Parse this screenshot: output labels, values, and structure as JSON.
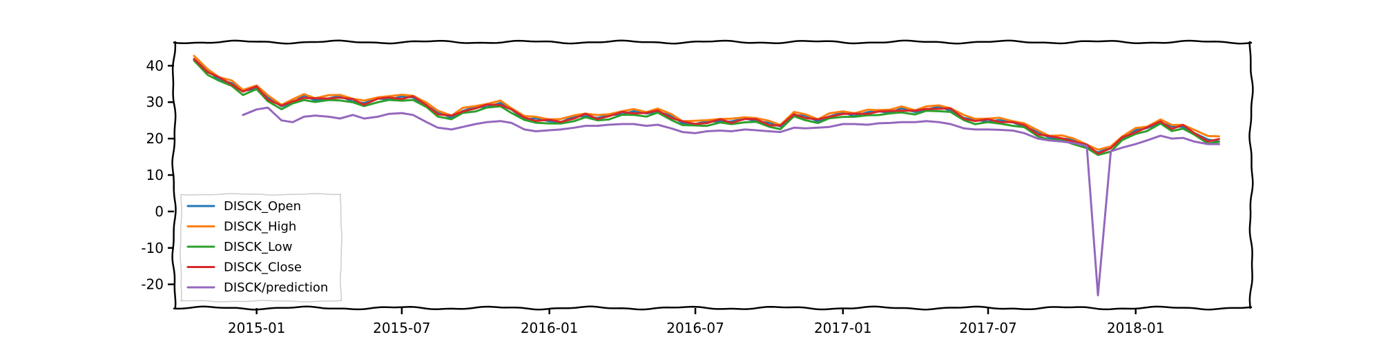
{
  "chart_data": {
    "type": "line",
    "title": "",
    "xlabel": "",
    "ylabel": "",
    "xlim": [
      "2014-09-20",
      "2018-05-25"
    ],
    "ylim": [
      -26.5,
      46.5
    ],
    "grid": false,
    "legend_position": "lower-left",
    "x_ticks": [
      "2015-01",
      "2015-07",
      "2016-01",
      "2016-07",
      "2017-01",
      "2017-07",
      "2018-01"
    ],
    "y_ticks": [
      40,
      30,
      20,
      10,
      0,
      -10,
      -20
    ],
    "y_tick_labels": [
      "40",
      "30",
      "20",
      "10",
      "0",
      "-10",
      "-20"
    ],
    "x": [
      "2014-10-15",
      "2014-11-01",
      "2014-11-15",
      "2014-12-01",
      "2014-12-15",
      "2015-01-01",
      "2015-01-15",
      "2015-02-01",
      "2015-02-15",
      "2015-03-01",
      "2015-03-15",
      "2015-04-01",
      "2015-04-15",
      "2015-05-01",
      "2015-05-15",
      "2015-06-01",
      "2015-06-15",
      "2015-07-01",
      "2015-07-15",
      "2015-08-01",
      "2015-08-15",
      "2015-09-01",
      "2015-09-15",
      "2015-10-01",
      "2015-10-15",
      "2015-11-01",
      "2015-11-15",
      "2015-12-01",
      "2015-12-15",
      "2016-01-01",
      "2016-01-15",
      "2016-02-01",
      "2016-02-15",
      "2016-03-01",
      "2016-03-15",
      "2016-04-01",
      "2016-04-15",
      "2016-05-01",
      "2016-05-15",
      "2016-06-01",
      "2016-06-15",
      "2016-07-01",
      "2016-07-15",
      "2016-08-01",
      "2016-08-15",
      "2016-09-01",
      "2016-09-15",
      "2016-10-01",
      "2016-10-15",
      "2016-11-01",
      "2016-11-15",
      "2016-12-01",
      "2016-12-15",
      "2017-01-01",
      "2017-01-15",
      "2017-02-01",
      "2017-02-15",
      "2017-03-01",
      "2017-03-15",
      "2017-04-01",
      "2017-04-15",
      "2017-05-01",
      "2017-05-15",
      "2017-06-01",
      "2017-06-15",
      "2017-07-01",
      "2017-07-15",
      "2017-08-01",
      "2017-08-15",
      "2017-09-01",
      "2017-09-15",
      "2017-10-01",
      "2017-10-15",
      "2017-11-01",
      "2017-11-15",
      "2017-12-01",
      "2017-12-15",
      "2018-01-01",
      "2018-01-15",
      "2018-02-01",
      "2018-02-15",
      "2018-03-01",
      "2018-03-15",
      "2018-04-01",
      "2018-04-15"
    ],
    "series": [
      {
        "name": "DISCK_Open",
        "color": "#1f77b4",
        "values": [
          41.8,
          38.5,
          36.5,
          35.0,
          33.0,
          34.0,
          31.0,
          29.0,
          30.0,
          31.5,
          30.8,
          31.0,
          31.5,
          30.5,
          29.5,
          31.0,
          31.0,
          31.2,
          31.5,
          29.0,
          27.0,
          26.0,
          27.5,
          28.5,
          29.0,
          29.5,
          28.0,
          25.5,
          25.2,
          25.0,
          24.5,
          25.8,
          26.5,
          25.5,
          26.3,
          27.0,
          27.2,
          27.0,
          27.5,
          26.0,
          24.5,
          24.0,
          24.5,
          25.0,
          24.5,
          25.5,
          25.0,
          24.0,
          23.5,
          26.5,
          26.0,
          25.0,
          26.0,
          27.0,
          26.5,
          27.0,
          27.5,
          27.3,
          28.0,
          27.5,
          28.0,
          28.5,
          28.0,
          25.5,
          25.0,
          25.0,
          24.8,
          24.5,
          23.5,
          21.5,
          20.5,
          20.0,
          19.5,
          18.0,
          16.0,
          17.5,
          20.0,
          22.0,
          23.0,
          24.5,
          23.0,
          23.5,
          21.5,
          19.5,
          19.5
        ]
      },
      {
        "name": "DISCK_High",
        "color": "#ff7f0e",
        "values": [
          42.4,
          39.1,
          37.1,
          35.6,
          33.6,
          34.6,
          31.6,
          29.6,
          30.6,
          32.1,
          31.4,
          31.6,
          32.1,
          31.1,
          30.1,
          31.6,
          31.6,
          31.8,
          32.1,
          29.6,
          27.6,
          26.6,
          28.1,
          29.1,
          29.6,
          30.1,
          28.6,
          26.1,
          25.8,
          25.6,
          25.1,
          26.4,
          27.1,
          26.1,
          26.9,
          27.6,
          27.8,
          27.6,
          28.1,
          26.6,
          25.1,
          24.6,
          25.1,
          25.6,
          25.1,
          26.1,
          25.6,
          24.6,
          24.1,
          27.1,
          26.6,
          25.6,
          26.6,
          27.6,
          27.1,
          27.6,
          28.1,
          27.9,
          28.6,
          28.1,
          28.6,
          29.1,
          28.6,
          26.1,
          25.6,
          25.6,
          25.4,
          25.1,
          24.1,
          22.1,
          21.1,
          20.6,
          20.1,
          18.6,
          16.6,
          18.1,
          20.6,
          22.6,
          23.6,
          25.1,
          23.6,
          24.1,
          22.1,
          20.8,
          20.8
        ]
      },
      {
        "name": "DISCK_Low",
        "color": "#2ca02c",
        "values": [
          41.1,
          37.8,
          35.8,
          34.3,
          32.3,
          33.3,
          30.3,
          28.3,
          29.3,
          30.8,
          30.1,
          30.3,
          30.8,
          29.8,
          28.8,
          30.3,
          30.3,
          30.5,
          30.8,
          28.3,
          26.3,
          25.3,
          26.8,
          27.8,
          28.3,
          28.8,
          27.3,
          24.8,
          24.5,
          24.3,
          23.8,
          25.1,
          25.8,
          24.8,
          25.6,
          26.3,
          26.5,
          26.3,
          26.8,
          25.3,
          23.8,
          23.3,
          23.8,
          24.3,
          23.8,
          24.8,
          24.3,
          23.3,
          22.8,
          25.8,
          25.3,
          24.3,
          25.3,
          26.3,
          25.8,
          26.3,
          26.8,
          26.6,
          27.3,
          26.8,
          27.3,
          27.8,
          27.3,
          24.8,
          24.3,
          24.3,
          24.1,
          23.8,
          22.8,
          20.8,
          19.8,
          19.3,
          18.8,
          17.3,
          15.3,
          16.8,
          19.3,
          21.3,
          22.3,
          23.8,
          22.3,
          22.8,
          20.8,
          19.0,
          19.0
        ]
      },
      {
        "name": "DISCK_Close",
        "color": "#d62728",
        "values": [
          41.8,
          38.5,
          36.5,
          35.0,
          33.0,
          34.0,
          31.0,
          29.0,
          30.0,
          31.5,
          30.8,
          31.0,
          31.5,
          30.5,
          29.5,
          31.0,
          31.0,
          31.2,
          31.5,
          29.0,
          27.0,
          26.0,
          27.5,
          28.5,
          29.0,
          29.5,
          28.0,
          25.5,
          25.2,
          25.0,
          24.5,
          25.8,
          26.5,
          25.5,
          26.3,
          27.0,
          27.2,
          27.0,
          27.5,
          26.0,
          24.5,
          24.0,
          24.5,
          25.0,
          24.5,
          25.5,
          25.0,
          24.0,
          23.5,
          26.5,
          26.0,
          25.0,
          26.0,
          27.0,
          26.5,
          27.0,
          27.5,
          27.3,
          28.0,
          27.5,
          28.0,
          28.5,
          28.0,
          25.5,
          25.0,
          25.0,
          24.8,
          24.5,
          23.5,
          21.5,
          20.5,
          20.0,
          19.5,
          18.0,
          16.0,
          17.5,
          20.0,
          22.0,
          23.0,
          24.5,
          23.0,
          23.5,
          21.5,
          19.5,
          19.5
        ]
      },
      {
        "name": "DISCK/prediction",
        "color": "#9467bd",
        "values": [
          null,
          null,
          null,
          null,
          26.5,
          28.0,
          28.5,
          25.0,
          24.5,
          26.0,
          26.3,
          26.0,
          25.5,
          26.5,
          25.5,
          26.0,
          26.8,
          27.0,
          26.5,
          24.5,
          23.0,
          22.5,
          23.2,
          24.0,
          24.5,
          24.8,
          24.3,
          22.5,
          22.0,
          22.3,
          22.5,
          23.0,
          23.5,
          23.5,
          23.8,
          24.0,
          24.0,
          23.5,
          23.8,
          22.8,
          21.8,
          21.5,
          22.0,
          22.2,
          22.0,
          22.5,
          22.3,
          22.0,
          21.8,
          23.0,
          22.8,
          23.0,
          23.2,
          24.0,
          24.0,
          23.8,
          24.2,
          24.3,
          24.5,
          24.5,
          24.8,
          24.5,
          24.0,
          22.8,
          22.5,
          22.5,
          22.4,
          22.2,
          21.5,
          20.0,
          19.5,
          19.2,
          18.8,
          18.0,
          -23.0,
          16.5,
          17.5,
          18.5,
          19.5,
          20.8,
          20.0,
          20.2,
          19.2,
          18.5,
          18.5
        ]
      }
    ]
  }
}
